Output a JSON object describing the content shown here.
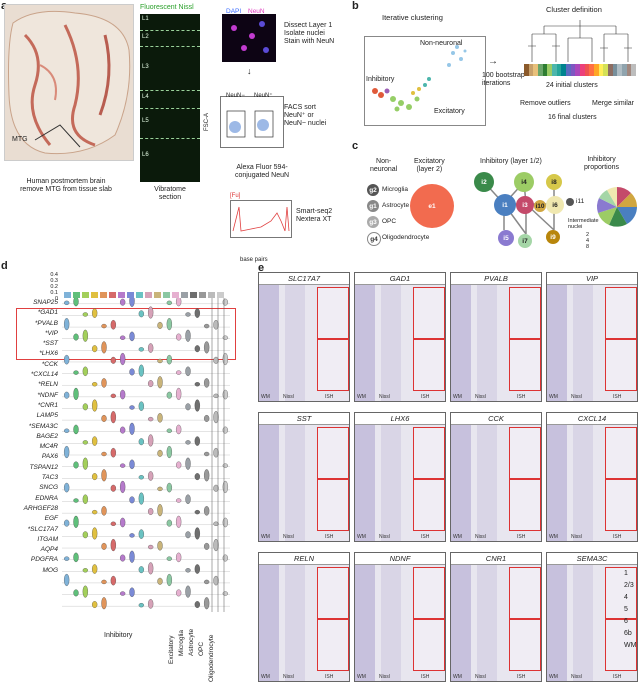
{
  "panels": {
    "a": "a",
    "b": "b",
    "c": "c",
    "d": "d",
    "e": "e"
  },
  "a": {
    "brain_label": "MTG",
    "brain_caption": "Human postmortem brain\nremove MTG from tissue slab",
    "nissl_title": "Fluorescent Nissl",
    "layers": [
      "L1",
      "L2",
      "L3",
      "L4",
      "L5",
      "L6"
    ],
    "vibratome": "Vibratome\nsection",
    "micro_legend_dapi": "DAPI",
    "micro_legend_neun": "NeuN",
    "step1": "Dissect Layer 1\nIsolate nuclei\nStain with NeuN",
    "facs_ylabel": "FSC-A",
    "facs_gate_minus": "NeuN−",
    "facs_gate_plus": "NeuN⁺",
    "step2": "FACS sort\nNeuN⁺ or\nNeuN− nuclei",
    "facs_xlabel": "Alexa Fluor 594-\nconjugated NeuN",
    "trace_unit": "[Fu]",
    "trace_xlabel": "base pairs",
    "step3": "Smart-seq2\nNextera XT"
  },
  "b": {
    "title_left": "Iterative clustering",
    "title_right": "Cluster definition",
    "lbl_nonneuronal": "Non-neuronal",
    "lbl_inhibitory": "Inhibitory",
    "lbl_excitatory": "Excitatory",
    "arrow1": "100 bootstrap\niterations",
    "initial": "24 initial clusters",
    "remove": "Remove outliers",
    "merge": "Merge similar",
    "final": "16 final clusters",
    "colors": [
      "#8b5a2b",
      "#c8a06a",
      "#e8c07a",
      "#6aa56a",
      "#2e7d32",
      "#9ccc65",
      "#4db6ac",
      "#26a69a",
      "#00838f",
      "#5c6bc0",
      "#7e57c2",
      "#ab47bc",
      "#ec407a",
      "#ef5350",
      "#ff7043",
      "#ffa726",
      "#ffee58",
      "#d4e157",
      "#8d6e63",
      "#78909c",
      "#b0bec5",
      "#90a4ae",
      "#a1887f",
      "#bdbdbd"
    ]
  },
  "c": {
    "nonneuronal": "Non-\nneuronal",
    "excitatory": "Excitatory\n(layer 2)",
    "inhibitory": "Inhibitory (layer 1/2)",
    "proportions": "Inhibitory\nproportions",
    "glia": [
      {
        "id": "g2",
        "name": "Microglia"
      },
      {
        "id": "g1",
        "name": "Astrocyte"
      },
      {
        "id": "g3",
        "name": "OPC"
      },
      {
        "id": "g4",
        "name": "Oligodendrocyte"
      }
    ],
    "exc_id": "e1",
    "inh_nodes": [
      "i2",
      "i4",
      "i8",
      "i1",
      "i3",
      "i10",
      "i6",
      "i11",
      "i5",
      "i7",
      "i9"
    ],
    "legend_title": "Intermediate\nnuclei",
    "legend_vals": [
      "2",
      "4",
      "8"
    ],
    "pie_labels": [
      "i5",
      "i7",
      "i8",
      "i6",
      "i9",
      "i10",
      "i11",
      "i1",
      "i2",
      "i3",
      "i4"
    ]
  },
  "d": {
    "yticks": [
      "0.4",
      "0.3",
      "0.2",
      "0.1",
      "0"
    ],
    "genes": [
      "SNAP25",
      "*GAD1",
      "*PVALB",
      "*VIP",
      "*SST",
      "*LHX6",
      "*CCK",
      "*CXCL14",
      "*RELN",
      "*NDNF",
      "*CNR1",
      "LAMP5",
      "*SEMA3C",
      "BAGE2",
      "MC4R",
      "PAX6",
      "TSPAN12",
      "TAC3",
      "SNCG",
      "EDNRA",
      "ARHGEF28",
      "EGF",
      "*SLC17A7",
      "ITGAM",
      "AQP4",
      "PDGFRA",
      "MOG"
    ],
    "xlabel_inh": "Inhibitory",
    "xlabels": [
      "Excitatory",
      "Microglia",
      "Astrocyte",
      "OPC",
      "Oligodendrocyte"
    ]
  },
  "e": {
    "panels": [
      {
        "gene": "SLC17A7"
      },
      {
        "gene": "GAD1"
      },
      {
        "gene": "PVALB"
      },
      {
        "gene": "VIP"
      },
      {
        "gene": "SST"
      },
      {
        "gene": "LHX6"
      },
      {
        "gene": "CCK"
      },
      {
        "gene": "CXCL14"
      },
      {
        "gene": "RELN"
      },
      {
        "gene": "NDNF"
      },
      {
        "gene": "CNR1"
      },
      {
        "gene": "SEMA3C"
      }
    ],
    "layer_labels": [
      "1",
      "2/3",
      "4",
      "5",
      "6",
      "6b",
      "WM"
    ],
    "cap_nissl": "Nissl",
    "cap_ish": "ISH",
    "cap_wm": "WM"
  }
}
